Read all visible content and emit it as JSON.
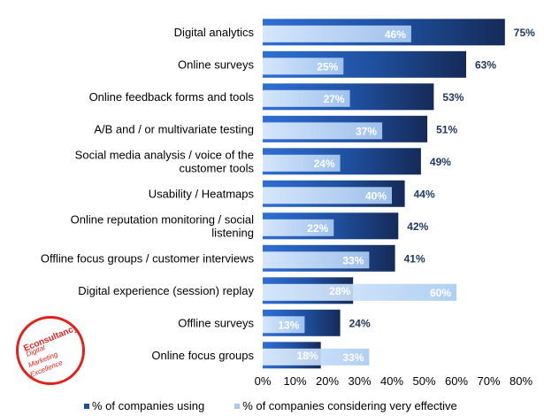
{
  "chart_data": {
    "type": "bar",
    "orientation": "horizontal",
    "categories": [
      "Digital analytics",
      "Online surveys",
      "Online feedback forms and tools",
      "A/B and / or multivariate testing",
      "Social media analysis / voice of the customer tools",
      "Usability / Heatmaps",
      "Online reputation monitoring / social listening",
      "Offline focus groups / customer interviews",
      "Digital experience (session) replay",
      "Offline surveys",
      "Online focus groups"
    ],
    "category_lines": [
      [
        "Digital analytics"
      ],
      [
        "Online surveys"
      ],
      [
        "Online feedback forms and tools"
      ],
      [
        "A/B and / or multivariate testing"
      ],
      [
        "Social media analysis / voice of the",
        "customer tools"
      ],
      [
        "Usability / Heatmaps"
      ],
      [
        "Online reputation monitoring / social",
        "listening"
      ],
      [
        "Offline focus groups / customer interviews"
      ],
      [
        "Digital experience (session) replay"
      ],
      [
        "Offline surveys"
      ],
      [
        "Online focus groups"
      ]
    ],
    "series": [
      {
        "name": "% of companies using",
        "values": [
          75,
          63,
          53,
          51,
          49,
          44,
          42,
          41,
          28,
          24,
          18
        ],
        "labels": [
          "75%",
          "63%",
          "53%",
          "51%",
          "49%",
          "44%",
          "42%",
          "41%",
          "28%",
          "24%",
          "18%"
        ],
        "color": "#1f3864"
      },
      {
        "name": "% of companies considering very effective",
        "values": [
          46,
          25,
          27,
          37,
          24,
          40,
          22,
          33,
          60,
          13,
          33
        ],
        "labels": [
          "46%",
          "25%",
          "27%",
          "37%",
          "24%",
          "40%",
          "22%",
          "33%",
          "60%",
          "13%",
          "33%"
        ],
        "color": "#b7d4f5"
      }
    ],
    "xlim": [
      0,
      80
    ],
    "xticks": [
      "0%",
      "10%",
      "20%",
      "30%",
      "40%",
      "50%",
      "60%",
      "70%",
      "80%"
    ],
    "grid": false,
    "legend": "bottom"
  },
  "legend": {
    "using_label": "% of companies using",
    "effective_label": "% of companies considering very effective",
    "using_glyph": "■",
    "effective_glyph": "■"
  },
  "logo": {
    "title": "Econsultancy",
    "line1": "Digital",
    "line2": "Marketing",
    "line3": "Excellence",
    "color": "#e2211c"
  }
}
